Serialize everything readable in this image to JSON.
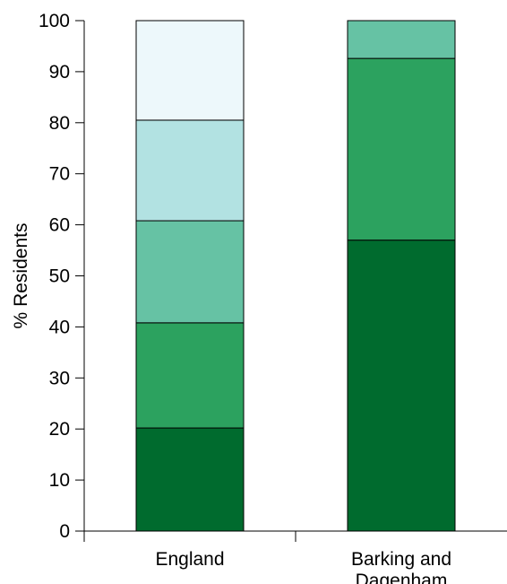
{
  "chart_data": {
    "type": "bar",
    "stacked": true,
    "title": "",
    "xlabel": "",
    "ylabel": "% Residents",
    "ylim": [
      0,
      100
    ],
    "yticks": [
      0,
      10,
      20,
      30,
      40,
      50,
      60,
      70,
      80,
      90,
      100
    ],
    "categories": [
      "England",
      "Barking and Dagenham"
    ],
    "legend": "none",
    "grid": false,
    "series": [
      {
        "color": "#006b2e",
        "values": [
          20.2,
          57.0
        ]
      },
      {
        "color": "#2ca25f",
        "values": [
          20.6,
          35.6
        ]
      },
      {
        "color": "#66c2a4",
        "values": [
          20.0,
          7.4
        ]
      },
      {
        "color": "#b2e2e2",
        "values": [
          19.7,
          0
        ]
      },
      {
        "color": "#edf8fb",
        "values": [
          19.5,
          0
        ]
      }
    ]
  }
}
